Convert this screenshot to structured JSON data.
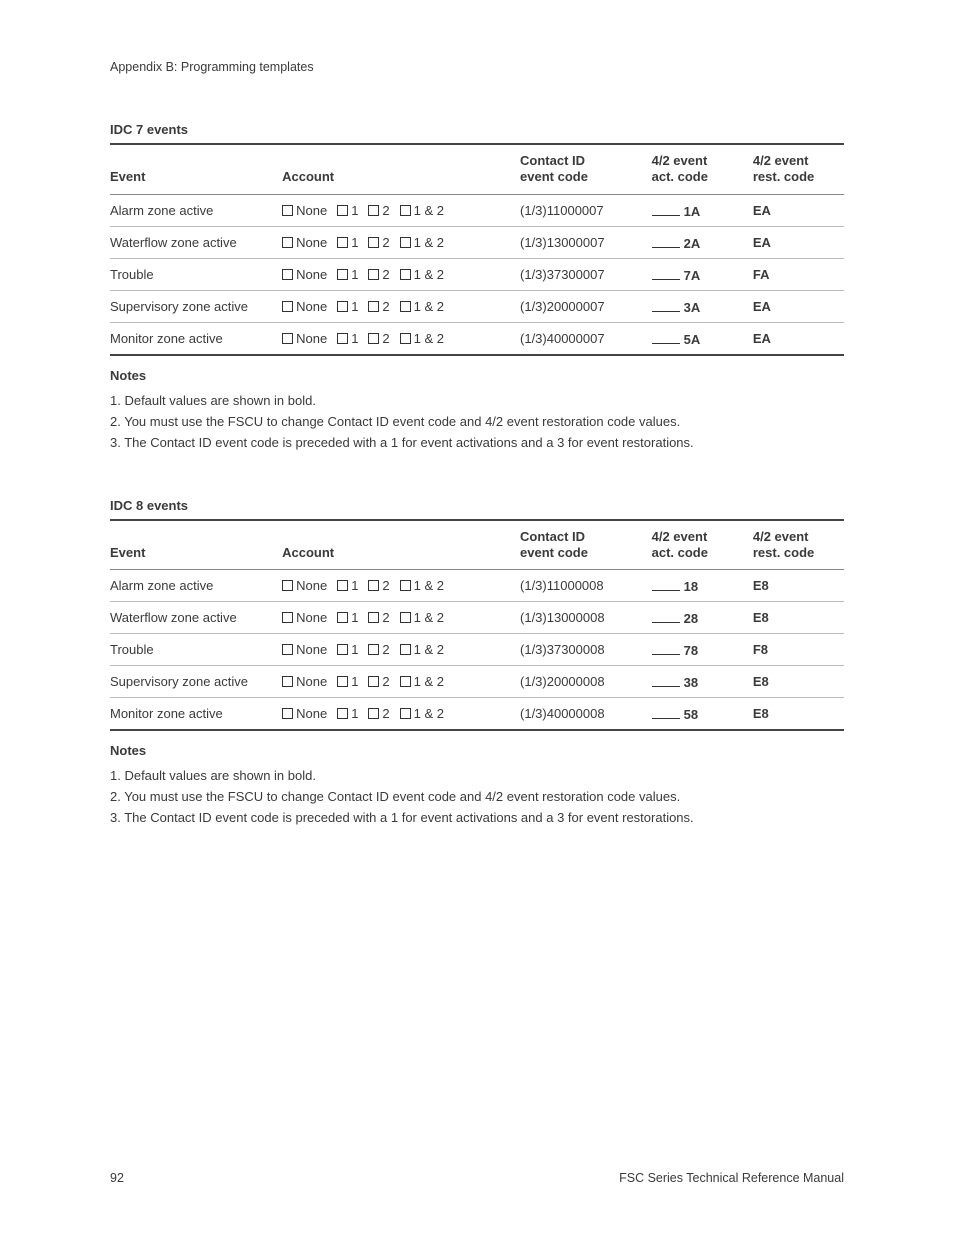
{
  "header": "Appendix B: Programming templates",
  "account_options": [
    "None",
    "1",
    "2",
    "1 & 2"
  ],
  "columns": {
    "event": "Event",
    "account": "Account",
    "cid": "Contact ID\nevent code",
    "act": "4/2 event\nact. code",
    "rest": "4/2 event\nrest. code"
  },
  "sections": [
    {
      "title": "IDC 7 events",
      "rows": [
        {
          "event": "Alarm zone active",
          "cid": "(1/3)11000007",
          "act": "1A",
          "rest": "EA"
        },
        {
          "event": "Waterflow zone active",
          "cid": "(1/3)13000007",
          "act": "2A",
          "rest": "EA"
        },
        {
          "event": "Trouble",
          "cid": "(1/3)37300007",
          "act": "7A",
          "rest": "FA"
        },
        {
          "event": "Supervisory zone active",
          "cid": "(1/3)20000007",
          "act": "3A",
          "rest": "EA"
        },
        {
          "event": "Monitor zone active",
          "cid": "(1/3)40000007",
          "act": "5A",
          "rest": "EA"
        }
      ]
    },
    {
      "title": "IDC 8 events",
      "rows": [
        {
          "event": "Alarm zone active",
          "cid": "(1/3)11000008",
          "act": "18",
          "rest": "E8"
        },
        {
          "event": "Waterflow zone active",
          "cid": "(1/3)13000008",
          "act": "28",
          "rest": "E8"
        },
        {
          "event": "Trouble",
          "cid": "(1/3)37300008",
          "act": "78",
          "rest": "F8"
        },
        {
          "event": "Supervisory zone active",
          "cid": "(1/3)20000008",
          "act": "38",
          "rest": "E8"
        },
        {
          "event": "Monitor zone active",
          "cid": "(1/3)40000008",
          "act": "58",
          "rest": "E8"
        }
      ]
    }
  ],
  "notes_title": "Notes",
  "notes": [
    "1. Default values are shown in bold.",
    "2. You must use the FSCU to change Contact ID event code and 4/2 event restoration code values.",
    "3. The Contact ID event code is preceded with a 1 for event activations and a 3 for event restorations."
  ],
  "footer": {
    "page": "92",
    "title": "FSC Series Technical Reference Manual"
  }
}
